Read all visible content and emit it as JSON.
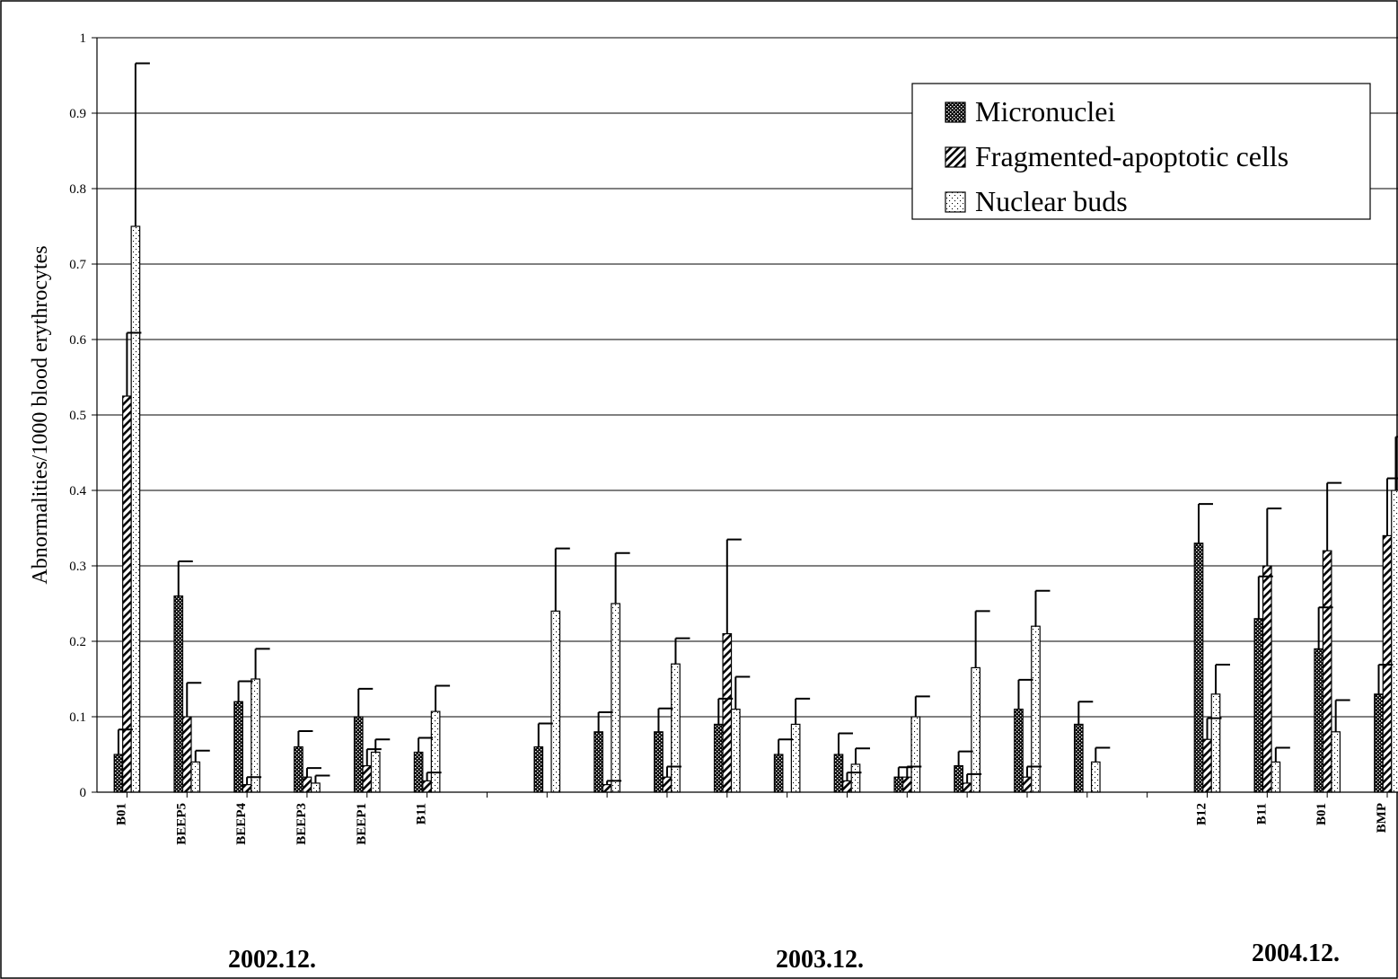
{
  "chart_data": {
    "type": "bar",
    "ylabel": "Abnormalities/1000 blood erythrocytes",
    "xlabel": "",
    "ylim": [
      0,
      1
    ],
    "yticks": [
      "0",
      "0.1",
      "0.2",
      "0.3",
      "0.4",
      "0.5",
      "0.6",
      "0.7",
      "0.8",
      "0.9",
      "1"
    ],
    "grid": true,
    "legend_position": "top-right",
    "categories": [
      "B01",
      "BEEP5",
      "BEEP4",
      "BEEP3",
      "BEEP1",
      "B11",
      "",
      "",
      "",
      "",
      "",
      "",
      "",
      "",
      "",
      "",
      "",
      "",
      "B12",
      "B11",
      "B01",
      "BMP"
    ],
    "groups": [
      {
        "label": "2002.12."
      },
      {
        "label": "2003.12."
      },
      {
        "label": "2004.12."
      }
    ],
    "series": [
      {
        "name": "Micronuclei",
        "pattern": "dots-dark",
        "values": [
          0.05,
          0.26,
          0.12,
          0.06,
          0.1,
          0.053,
          null,
          0.06,
          0.08,
          0.08,
          0.09,
          0.05,
          0.05,
          0.02,
          0.035,
          0.11,
          0.09,
          null,
          0.33,
          0.23,
          0.19,
          0.13
        ],
        "errors": [
          0.033,
          0.046,
          0.027,
          0.021,
          0.037,
          0.019,
          null,
          0.031,
          0.026,
          0.031,
          0.034,
          0.02,
          0.028,
          0.013,
          0.019,
          0.039,
          0.03,
          null,
          0.052,
          0.056,
          0.055,
          0.039
        ]
      },
      {
        "name": "Fragmented-apoptotic cells",
        "pattern": "diagonal-hatch",
        "values": [
          0.525,
          0.1,
          0.01,
          0.02,
          0.035,
          0.015,
          null,
          null,
          0.01,
          0.02,
          0.21,
          null,
          0.015,
          0.02,
          0.012,
          0.02,
          null,
          null,
          0.07,
          0.3,
          0.32,
          0.34
        ],
        "errors": [
          0.084,
          0.045,
          0.01,
          0.012,
          0.022,
          0.011,
          null,
          null,
          0.005,
          0.014,
          0.125,
          null,
          0.011,
          0.014,
          0.012,
          0.014,
          null,
          null,
          0.028,
          0.076,
          0.09,
          0.076
        ]
      },
      {
        "name": "Nuclear buds",
        "pattern": "light-dots",
        "values": [
          0.75,
          0.04,
          0.15,
          0.012,
          0.053,
          0.107,
          null,
          0.24,
          0.25,
          0.17,
          0.11,
          0.09,
          0.037,
          0.1,
          0.165,
          0.22,
          0.04,
          null,
          0.13,
          0.04,
          0.08,
          0.4
        ],
        "errors": [
          0.216,
          0.015,
          0.04,
          0.01,
          0.017,
          0.034,
          null,
          0.083,
          0.067,
          0.034,
          0.043,
          0.034,
          0.021,
          0.027,
          0.075,
          0.047,
          0.019,
          null,
          0.039,
          0.019,
          0.042,
          0.071
        ]
      }
    ]
  }
}
